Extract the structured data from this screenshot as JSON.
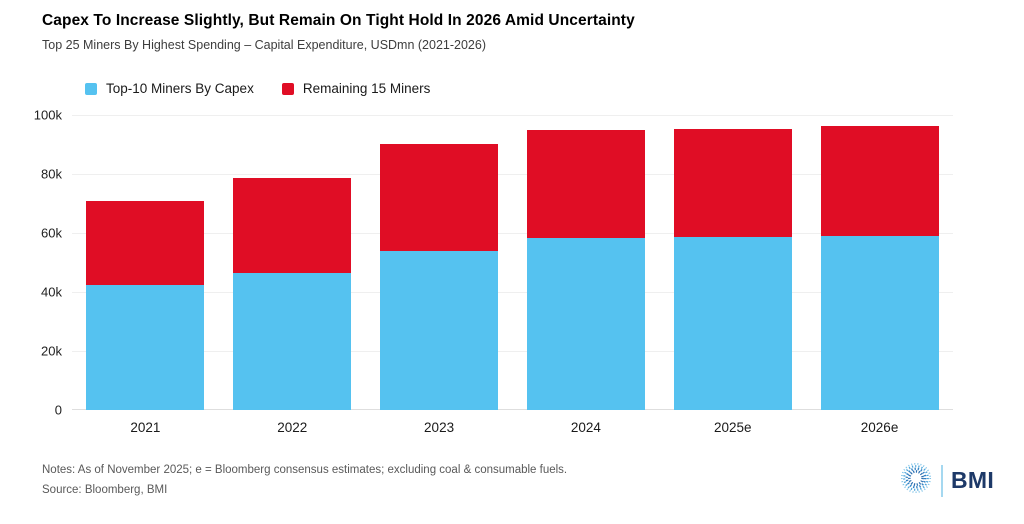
{
  "header": {
    "title": "Capex To Increase Slightly, But Remain On Tight Hold In 2026 Amid Uncertainty",
    "subtitle": "Top 25 Miners By Highest Spending – Capital Expenditure, USDmn (2021-2026)"
  },
  "legend": [
    {
      "label": "Top-10 Miners By Capex",
      "color": "#55C2F0"
    },
    {
      "label": "Remaining 15 Miners",
      "color": "#E00D25"
    }
  ],
  "chart_data": {
    "type": "bar",
    "stacked": true,
    "title": "Capex To Increase Slightly, But Remain On Tight Hold In 2026 Amid Uncertainty",
    "subtitle": "Top 25 Miners By Highest Spending – Capital Expenditure, USDmn (2021-2026)",
    "categories": [
      "2021",
      "2022",
      "2023",
      "2024",
      "2025e",
      "2026e"
    ],
    "series": [
      {
        "name": "Top-10 Miners By Capex",
        "color": "#55C2F0",
        "values": [
          42300,
          46500,
          54000,
          58300,
          58600,
          59000
        ]
      },
      {
        "name": "Remaining 15 Miners",
        "color": "#E00D25",
        "values": [
          28700,
          32200,
          36200,
          36700,
          36800,
          37200
        ]
      }
    ],
    "totals": [
      71000,
      78700,
      90200,
      95000,
      95400,
      96200
    ],
    "xlabel": "",
    "ylabel": "",
    "ylim": [
      0,
      100000
    ],
    "yticks": [
      0,
      20000,
      40000,
      60000,
      80000,
      100000
    ],
    "ytick_labels": [
      "0",
      "20k",
      "40k",
      "60k",
      "80k",
      "100k"
    ],
    "grid": "horizontal",
    "legend_position": "top-left"
  },
  "footer": {
    "notes": "Notes: As of November 2025; e = Bloomberg consensus estimates; excluding coal & consumable fuels.",
    "source": "Source: Bloomberg, BMI",
    "logo_text": "BMI"
  },
  "colors": {
    "series_blue": "#55C2F0",
    "series_red": "#E00D25",
    "gridline": "#efefef",
    "zero_line": "#dedede",
    "logo_navy": "#1d3968",
    "logo_divider_blue": "#a5d8f0"
  }
}
